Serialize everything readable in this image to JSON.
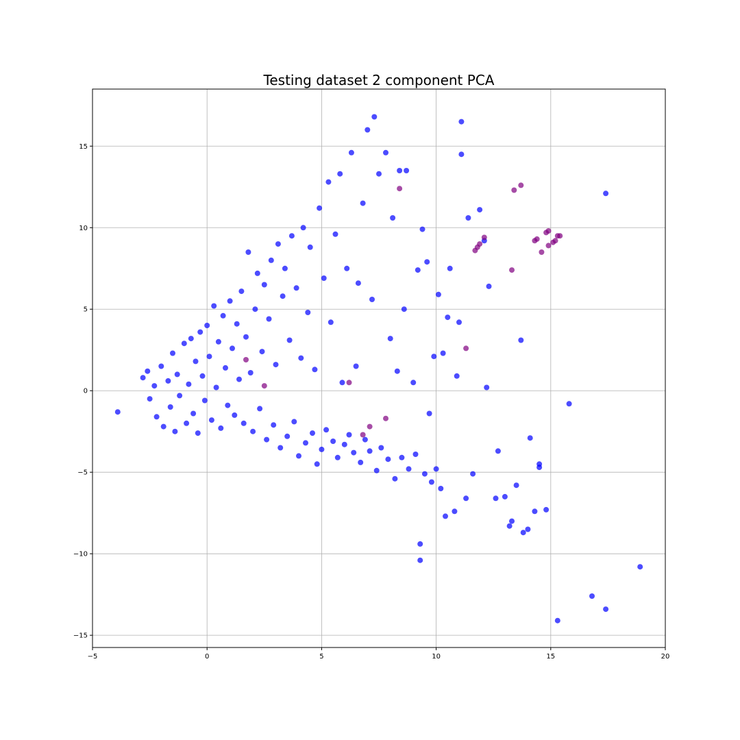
{
  "chart_data": {
    "type": "scatter",
    "title": "Testing dataset 2 component PCA",
    "xlabel": "",
    "ylabel": "",
    "xlim": [
      -5,
      20
    ],
    "ylim": [
      -15.75,
      18.5
    ],
    "xticks": [
      -5,
      0,
      5,
      10,
      15,
      20
    ],
    "yticks": [
      -15,
      -10,
      -5,
      0,
      5,
      10,
      15
    ],
    "xtick_labels": [
      "−5",
      "0",
      "5",
      "10",
      "15",
      "20"
    ],
    "ytick_labels": [
      "−15",
      "−10",
      "−5",
      "0",
      "5",
      "10",
      "15"
    ],
    "grid": true,
    "colors": {
      "series_a": "#0000ff",
      "series_b": "#800080"
    },
    "marker_alpha": 0.7,
    "series": [
      {
        "color": "#0000ff",
        "points": [
          [
            -3.9,
            -1.3
          ],
          [
            -2.8,
            0.8
          ],
          [
            -2.6,
            1.2
          ],
          [
            -2.5,
            -0.5
          ],
          [
            -2.3,
            0.3
          ],
          [
            -2.2,
            -1.6
          ],
          [
            -2.0,
            1.5
          ],
          [
            -1.9,
            -2.2
          ],
          [
            -1.7,
            0.6
          ],
          [
            -1.6,
            -1.0
          ],
          [
            -1.5,
            2.3
          ],
          [
            -1.4,
            -2.5
          ],
          [
            -1.3,
            1.0
          ],
          [
            -1.2,
            -0.3
          ],
          [
            -1.0,
            2.9
          ],
          [
            -0.9,
            -2.0
          ],
          [
            -0.8,
            0.4
          ],
          [
            -0.7,
            3.2
          ],
          [
            -0.6,
            -1.4
          ],
          [
            -0.5,
            1.8
          ],
          [
            -0.4,
            -2.6
          ],
          [
            -0.3,
            3.6
          ],
          [
            -0.2,
            0.9
          ],
          [
            -0.1,
            -0.6
          ],
          [
            0.0,
            4.0
          ],
          [
            0.1,
            2.1
          ],
          [
            0.2,
            -1.8
          ],
          [
            0.3,
            5.2
          ],
          [
            0.4,
            0.2
          ],
          [
            0.5,
            3.0
          ],
          [
            0.6,
            -2.3
          ],
          [
            0.7,
            4.6
          ],
          [
            0.8,
            1.4
          ],
          [
            0.9,
            -0.9
          ],
          [
            1.0,
            5.5
          ],
          [
            1.1,
            2.6
          ],
          [
            1.2,
            -1.5
          ],
          [
            1.3,
            4.1
          ],
          [
            1.4,
            0.7
          ],
          [
            1.5,
            6.1
          ],
          [
            1.6,
            -2.0
          ],
          [
            1.7,
            3.3
          ],
          [
            1.8,
            8.5
          ],
          [
            1.9,
            1.1
          ],
          [
            2.0,
            -2.5
          ],
          [
            2.1,
            5.0
          ],
          [
            2.2,
            7.2
          ],
          [
            2.3,
            -1.1
          ],
          [
            2.4,
            2.4
          ],
          [
            2.5,
            6.5
          ],
          [
            2.6,
            -3.0
          ],
          [
            2.7,
            4.4
          ],
          [
            2.8,
            8.0
          ],
          [
            2.9,
            -2.1
          ],
          [
            3.0,
            1.6
          ],
          [
            3.1,
            9.0
          ],
          [
            3.2,
            -3.5
          ],
          [
            3.3,
            5.8
          ],
          [
            3.4,
            7.5
          ],
          [
            3.5,
            -2.8
          ],
          [
            3.6,
            3.1
          ],
          [
            3.7,
            9.5
          ],
          [
            3.8,
            -1.9
          ],
          [
            3.9,
            6.3
          ],
          [
            4.0,
            -4.0
          ],
          [
            4.1,
            2.0
          ],
          [
            4.2,
            10.0
          ],
          [
            4.3,
            -3.2
          ],
          [
            4.4,
            4.8
          ],
          [
            4.5,
            8.8
          ],
          [
            4.6,
            -2.6
          ],
          [
            4.7,
            1.3
          ],
          [
            4.8,
            -4.5
          ],
          [
            4.9,
            11.2
          ],
          [
            5.0,
            -3.6
          ],
          [
            5.1,
            6.9
          ],
          [
            5.2,
            -2.4
          ],
          [
            5.3,
            12.8
          ],
          [
            5.4,
            4.2
          ],
          [
            5.5,
            -3.1
          ],
          [
            5.6,
            9.6
          ],
          [
            5.7,
            -4.1
          ],
          [
            5.8,
            13.3
          ],
          [
            5.9,
            0.5
          ],
          [
            6.0,
            -3.3
          ],
          [
            6.1,
            7.5
          ],
          [
            6.2,
            -2.7
          ],
          [
            6.3,
            14.6
          ],
          [
            6.4,
            -3.8
          ],
          [
            6.5,
            1.5
          ],
          [
            6.6,
            6.6
          ],
          [
            6.7,
            -4.4
          ],
          [
            6.8,
            11.5
          ],
          [
            6.9,
            -3.0
          ],
          [
            7.0,
            16.0
          ],
          [
            7.1,
            -3.7
          ],
          [
            7.2,
            5.6
          ],
          [
            7.3,
            16.8
          ],
          [
            7.4,
            -4.9
          ],
          [
            7.5,
            13.3
          ],
          [
            7.6,
            -3.5
          ],
          [
            7.8,
            14.6
          ],
          [
            7.9,
            -4.2
          ],
          [
            8.0,
            3.2
          ],
          [
            8.1,
            10.6
          ],
          [
            8.2,
            -5.4
          ],
          [
            8.3,
            1.2
          ],
          [
            8.4,
            13.5
          ],
          [
            8.5,
            -4.1
          ],
          [
            8.6,
            5.0
          ],
          [
            8.7,
            13.5
          ],
          [
            8.8,
            -4.8
          ],
          [
            9.0,
            0.5
          ],
          [
            9.1,
            -3.9
          ],
          [
            9.2,
            7.4
          ],
          [
            9.3,
            -9.4
          ],
          [
            9.3,
            -10.4
          ],
          [
            9.4,
            9.9
          ],
          [
            9.5,
            -5.1
          ],
          [
            9.6,
            7.9
          ],
          [
            9.7,
            -1.4
          ],
          [
            9.8,
            -5.6
          ],
          [
            9.9,
            2.1
          ],
          [
            10.0,
            -4.8
          ],
          [
            10.1,
            5.9
          ],
          [
            10.2,
            -6.0
          ],
          [
            10.3,
            2.3
          ],
          [
            10.4,
            -7.7
          ],
          [
            10.5,
            4.5
          ],
          [
            10.6,
            7.5
          ],
          [
            10.8,
            -7.4
          ],
          [
            10.9,
            0.9
          ],
          [
            11.0,
            4.2
          ],
          [
            11.1,
            16.5
          ],
          [
            11.1,
            14.5
          ],
          [
            11.3,
            -6.6
          ],
          [
            11.4,
            10.6
          ],
          [
            11.6,
            -5.1
          ],
          [
            11.9,
            11.1
          ],
          [
            12.1,
            9.2
          ],
          [
            12.2,
            0.2
          ],
          [
            12.3,
            6.4
          ],
          [
            12.6,
            -6.6
          ],
          [
            12.7,
            -3.7
          ],
          [
            13.0,
            -6.5
          ],
          [
            13.2,
            -8.3
          ],
          [
            13.3,
            -8.0
          ],
          [
            13.5,
            -5.8
          ],
          [
            13.7,
            3.1
          ],
          [
            13.8,
            -8.7
          ],
          [
            14.0,
            -8.5
          ],
          [
            14.1,
            -2.9
          ],
          [
            14.3,
            -7.4
          ],
          [
            14.5,
            -4.5
          ],
          [
            14.5,
            -4.7
          ],
          [
            14.8,
            -7.3
          ],
          [
            15.3,
            -14.1
          ],
          [
            15.8,
            -0.8
          ],
          [
            16.8,
            -12.6
          ],
          [
            17.4,
            -13.4
          ],
          [
            17.4,
            12.1
          ],
          [
            18.9,
            -10.8
          ]
        ]
      },
      {
        "color": "#800080",
        "points": [
          [
            1.7,
            1.9
          ],
          [
            2.5,
            0.3
          ],
          [
            6.2,
            0.5
          ],
          [
            6.8,
            -2.7
          ],
          [
            7.1,
            -2.2
          ],
          [
            7.8,
            -1.7
          ],
          [
            8.4,
            12.4
          ],
          [
            11.3,
            2.6
          ],
          [
            11.7,
            8.6
          ],
          [
            11.8,
            8.8
          ],
          [
            11.9,
            9.0
          ],
          [
            12.1,
            9.4
          ],
          [
            13.3,
            7.4
          ],
          [
            13.4,
            12.3
          ],
          [
            13.7,
            12.6
          ],
          [
            14.3,
            9.2
          ],
          [
            14.4,
            9.3
          ],
          [
            14.6,
            8.5
          ],
          [
            14.8,
            9.7
          ],
          [
            14.9,
            9.8
          ],
          [
            14.9,
            8.9
          ],
          [
            15.1,
            9.1
          ],
          [
            15.2,
            9.2
          ],
          [
            15.3,
            9.5
          ],
          [
            15.4,
            9.5
          ]
        ]
      }
    ]
  }
}
